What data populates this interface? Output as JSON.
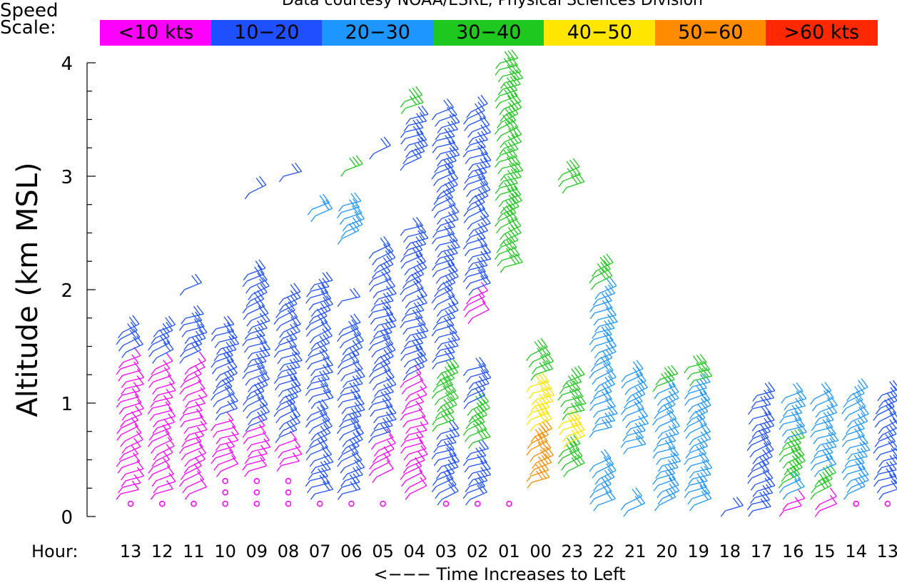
{
  "credit": "Data courtesy NOAA/ESRL, Physical Sciences Division",
  "speed_scale": {
    "label_line1": "Speed",
    "label_line2": "Scale:",
    "bins": [
      {
        "label": "<10 kts",
        "color": "#ff00ff"
      },
      {
        "label": "10−20",
        "color": "#1e50ff"
      },
      {
        "label": "20−30",
        "color": "#1e96ff"
      },
      {
        "label": "30−40",
        "color": "#1ec81e"
      },
      {
        "label": "40−50",
        "color": "#ffe600"
      },
      {
        "label": "50−60",
        "color": "#ff8c00"
      },
      {
        "label": ">60 kts",
        "color": "#ff2800"
      }
    ]
  },
  "chart_data": {
    "type": "wind-barb profiler time-height",
    "ylabel": "Altitude (km MSL)",
    "xlabel": "<−−− Time Increases to Left",
    "hour_label": "Hour:",
    "ylim": [
      0,
      4
    ],
    "y_ticks": [
      0,
      1,
      2,
      3,
      4
    ],
    "hours": [
      "13",
      "12",
      "11",
      "10",
      "09",
      "08",
      "07",
      "06",
      "05",
      "04",
      "03",
      "02",
      "01",
      "00",
      "23",
      "22",
      "21",
      "20",
      "19",
      "18",
      "17",
      "16",
      "15",
      "14",
      "13"
    ],
    "columns": [
      {
        "hour": "13",
        "segments": [
          {
            "from": 0.2,
            "to": 1.4,
            "speed": 5
          },
          {
            "from": 1.45,
            "to": 1.65,
            "speed": 15
          }
        ],
        "calm": [
          0.1
        ]
      },
      {
        "hour": "12",
        "segments": [
          {
            "from": 0.2,
            "to": 1.35,
            "speed": 5
          },
          {
            "from": 1.4,
            "to": 1.65,
            "speed": 15
          }
        ],
        "calm": [
          0.1
        ]
      },
      {
        "hour": "11",
        "segments": [
          {
            "from": 0.2,
            "to": 1.35,
            "speed": 5
          },
          {
            "from": 1.4,
            "to": 1.75,
            "speed": 15
          },
          {
            "from": 2.0,
            "to": 2.05,
            "speed": 15
          }
        ],
        "calm": [
          0.1
        ]
      },
      {
        "hour": "10",
        "segments": [
          {
            "from": 0.4,
            "to": 0.85,
            "speed": 5
          },
          {
            "from": 0.9,
            "to": 1.7,
            "speed": 15
          }
        ],
        "calm": [
          0.1,
          0.2,
          0.3
        ]
      },
      {
        "hour": "09",
        "segments": [
          {
            "from": 0.4,
            "to": 0.75,
            "speed": 5
          },
          {
            "from": 0.8,
            "to": 2.15,
            "speed": 15
          },
          {
            "from": 2.85,
            "to": 2.9,
            "speed": 15
          }
        ],
        "calm": [
          0.1,
          0.2,
          0.3
        ]
      },
      {
        "hour": "08",
        "segments": [
          {
            "from": 0.45,
            "to": 0.65,
            "speed": 5
          },
          {
            "from": 0.7,
            "to": 1.95,
            "speed": 15
          },
          {
            "from": 3.0,
            "to": 3.05,
            "speed": 15
          }
        ],
        "calm": [
          0.1,
          0.2,
          0.3
        ]
      },
      {
        "hour": "07",
        "segments": [
          {
            "from": 0.2,
            "to": 0.95,
            "speed": 15
          },
          {
            "from": 1.0,
            "to": 2.05,
            "speed": 15
          },
          {
            "from": 2.65,
            "to": 2.75,
            "speed": 25
          }
        ],
        "calm": [
          0.1
        ]
      },
      {
        "hour": "06",
        "segments": [
          {
            "from": 0.2,
            "to": 1.7,
            "speed": 15
          },
          {
            "from": 1.9,
            "to": 1.95,
            "speed": 15
          },
          {
            "from": 2.45,
            "to": 2.75,
            "speed": 25
          },
          {
            "from": 3.05,
            "to": 3.1,
            "speed": 35
          }
        ],
        "calm": [
          0.1
        ]
      },
      {
        "hour": "05",
        "segments": [
          {
            "from": 0.35,
            "to": 0.65,
            "speed": 5
          },
          {
            "from": 0.7,
            "to": 2.35,
            "speed": 15
          },
          {
            "from": 3.2,
            "to": 3.25,
            "speed": 15
          }
        ],
        "calm": [
          0.1
        ]
      },
      {
        "hour": "04",
        "segments": [
          {
            "from": 0.2,
            "to": 1.2,
            "speed": 5
          },
          {
            "from": 1.25,
            "to": 2.55,
            "speed": 15
          },
          {
            "from": 3.1,
            "to": 3.55,
            "speed": 15
          },
          {
            "from": 3.6,
            "to": 3.7,
            "speed": 35
          }
        ],
        "calm": []
      },
      {
        "hour": "03",
        "segments": [
          {
            "from": 0.15,
            "to": 0.75,
            "speed": 15
          },
          {
            "from": 0.8,
            "to": 1.3,
            "speed": 35
          },
          {
            "from": 1.35,
            "to": 2.8,
            "speed": 15
          },
          {
            "from": 2.85,
            "to": 3.55,
            "speed": 15
          }
        ],
        "calm": [
          0.1
        ]
      },
      {
        "hour": "02",
        "segments": [
          {
            "from": 0.15,
            "to": 0.6,
            "speed": 15
          },
          {
            "from": 0.65,
            "to": 0.95,
            "speed": 35
          },
          {
            "from": 1.0,
            "to": 1.3,
            "speed": 15
          },
          {
            "from": 1.75,
            "to": 1.95,
            "speed": 5
          },
          {
            "from": 2.0,
            "to": 3.6,
            "speed": 15
          }
        ],
        "calm": [
          0.1
        ]
      },
      {
        "hour": "01",
        "segments": [
          {
            "from": 2.2,
            "to": 4.0,
            "speed": 35
          }
        ],
        "calm": [
          0.1
        ]
      },
      {
        "hour": "00",
        "segments": [
          {
            "from": 0.3,
            "to": 0.75,
            "speed": 55
          },
          {
            "from": 0.8,
            "to": 1.2,
            "speed": 45
          },
          {
            "from": 1.25,
            "to": 1.45,
            "speed": 35
          }
        ],
        "calm": []
      },
      {
        "hour": "23",
        "segments": [
          {
            "from": 0.4,
            "to": 0.6,
            "speed": 35
          },
          {
            "from": 0.65,
            "to": 0.85,
            "speed": 45
          },
          {
            "from": 0.9,
            "to": 1.2,
            "speed": 35
          },
          {
            "from": 2.9,
            "to": 3.05,
            "speed": 35
          }
        ],
        "calm": []
      },
      {
        "hour": "22",
        "segments": [
          {
            "from": 0.1,
            "to": 0.5,
            "speed": 25
          },
          {
            "from": 0.75,
            "to": 2.0,
            "speed": 25
          },
          {
            "from": 2.05,
            "to": 2.2,
            "speed": 35
          }
        ],
        "calm": []
      },
      {
        "hour": "21",
        "segments": [
          {
            "from": 0.6,
            "to": 1.25,
            "speed": 25
          },
          {
            "from": 0.05,
            "to": 0.15,
            "speed": 25
          }
        ],
        "calm": []
      },
      {
        "hour": "20",
        "segments": [
          {
            "from": 0.1,
            "to": 1.1,
            "speed": 25
          },
          {
            "from": 1.15,
            "to": 1.25,
            "speed": 35
          }
        ],
        "calm": []
      },
      {
        "hour": "19",
        "segments": [
          {
            "from": 0.1,
            "to": 1.15,
            "speed": 25
          },
          {
            "from": 1.2,
            "to": 1.35,
            "speed": 35
          }
        ],
        "calm": []
      },
      {
        "hour": "18",
        "segments": [
          {
            "from": 0.05,
            "to": 0.1,
            "speed": 15
          }
        ],
        "calm": []
      },
      {
        "hour": "17",
        "segments": [
          {
            "from": 0.05,
            "to": 0.9,
            "speed": 15
          },
          {
            "from": 0.95,
            "to": 1.1,
            "speed": 15
          }
        ],
        "calm": []
      },
      {
        "hour": "16",
        "segments": [
          {
            "from": 0.05,
            "to": 0.15,
            "speed": 5
          },
          {
            "from": 0.2,
            "to": 0.3,
            "speed": 25
          },
          {
            "from": 0.3,
            "to": 0.65,
            "speed": 35
          },
          {
            "from": 0.7,
            "to": 1.1,
            "speed": 25
          }
        ],
        "calm": []
      },
      {
        "hour": "15",
        "segments": [
          {
            "from": 0.05,
            "to": 0.15,
            "speed": 5
          },
          {
            "from": 0.2,
            "to": 0.35,
            "speed": 35
          },
          {
            "from": 0.4,
            "to": 1.05,
            "speed": 25
          }
        ],
        "calm": []
      },
      {
        "hour": "14",
        "segments": [
          {
            "from": 0.2,
            "to": 1.1,
            "speed": 25
          }
        ],
        "calm": [
          0.1
        ]
      },
      {
        "hour": "13",
        "segments": [
          {
            "from": 0.2,
            "to": 1.1,
            "speed": 15
          }
        ],
        "calm": [
          0.1
        ]
      }
    ]
  }
}
